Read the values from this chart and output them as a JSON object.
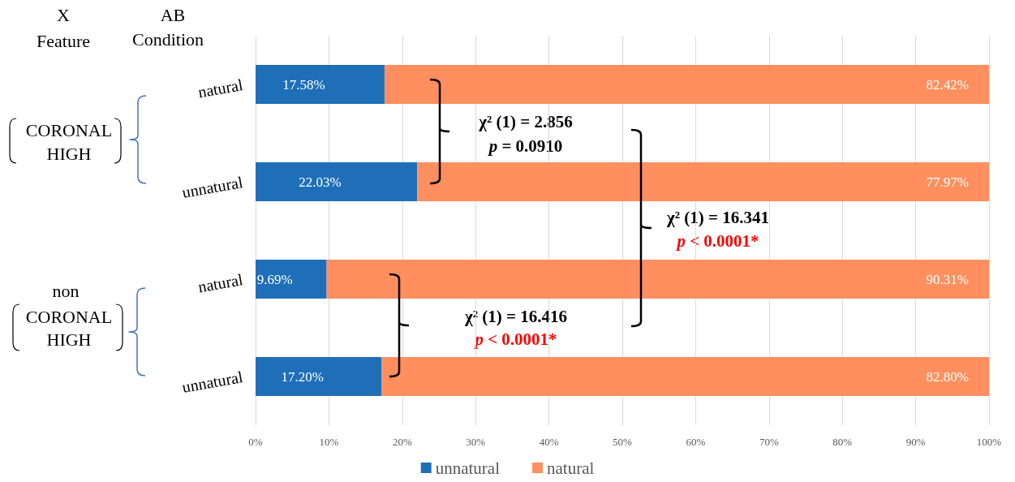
{
  "chart_data": {
    "type": "bar",
    "orientation": "horizontal",
    "stacked": true,
    "categories": [
      "natural",
      "unnatural",
      "natural",
      "unnatural"
    ],
    "series": [
      {
        "name": "unnatural",
        "color": "#1f6fb8",
        "values": [
          17.58,
          22.03,
          9.69,
          17.2
        ],
        "value_labels": [
          "17.58%",
          "22.03%",
          "9.69%",
          "17.20%"
        ]
      },
      {
        "name": "natural",
        "color": "#ff8f5e",
        "values": [
          82.42,
          77.97,
          90.31,
          82.8
        ],
        "value_labels": [
          "82.42%",
          "77.97%",
          "90.31%",
          "82.80%"
        ]
      }
    ],
    "xlim": [
      0,
      100
    ],
    "xticks": [
      {
        "value": 0,
        "label": "0%"
      },
      {
        "value": 10,
        "label": "10%"
      },
      {
        "value": 20,
        "label": "20%"
      },
      {
        "value": 30,
        "label": "30%"
      },
      {
        "value": 40,
        "label": "40%"
      },
      {
        "value": 50,
        "label": "50%"
      },
      {
        "value": 60,
        "label": "60%"
      },
      {
        "value": 70,
        "label": "70%"
      },
      {
        "value": 80,
        "label": "80%"
      },
      {
        "value": 90,
        "label": "90%"
      },
      {
        "value": 100,
        "label": "100%"
      }
    ],
    "grid": "x",
    "legend": "bottom",
    "annotations": [
      "X",
      "Feature",
      "AB",
      "Condition",
      "CORONAL",
      "HIGH",
      "non",
      "CORONAL",
      "HIGH",
      "χ² (1) = 2.856",
      "p = 0.0910",
      "χ² (1) = 16.341",
      "p < 0.0001*",
      "χ² (1) = 16.416",
      "p < 0.0001*"
    ]
  }
}
